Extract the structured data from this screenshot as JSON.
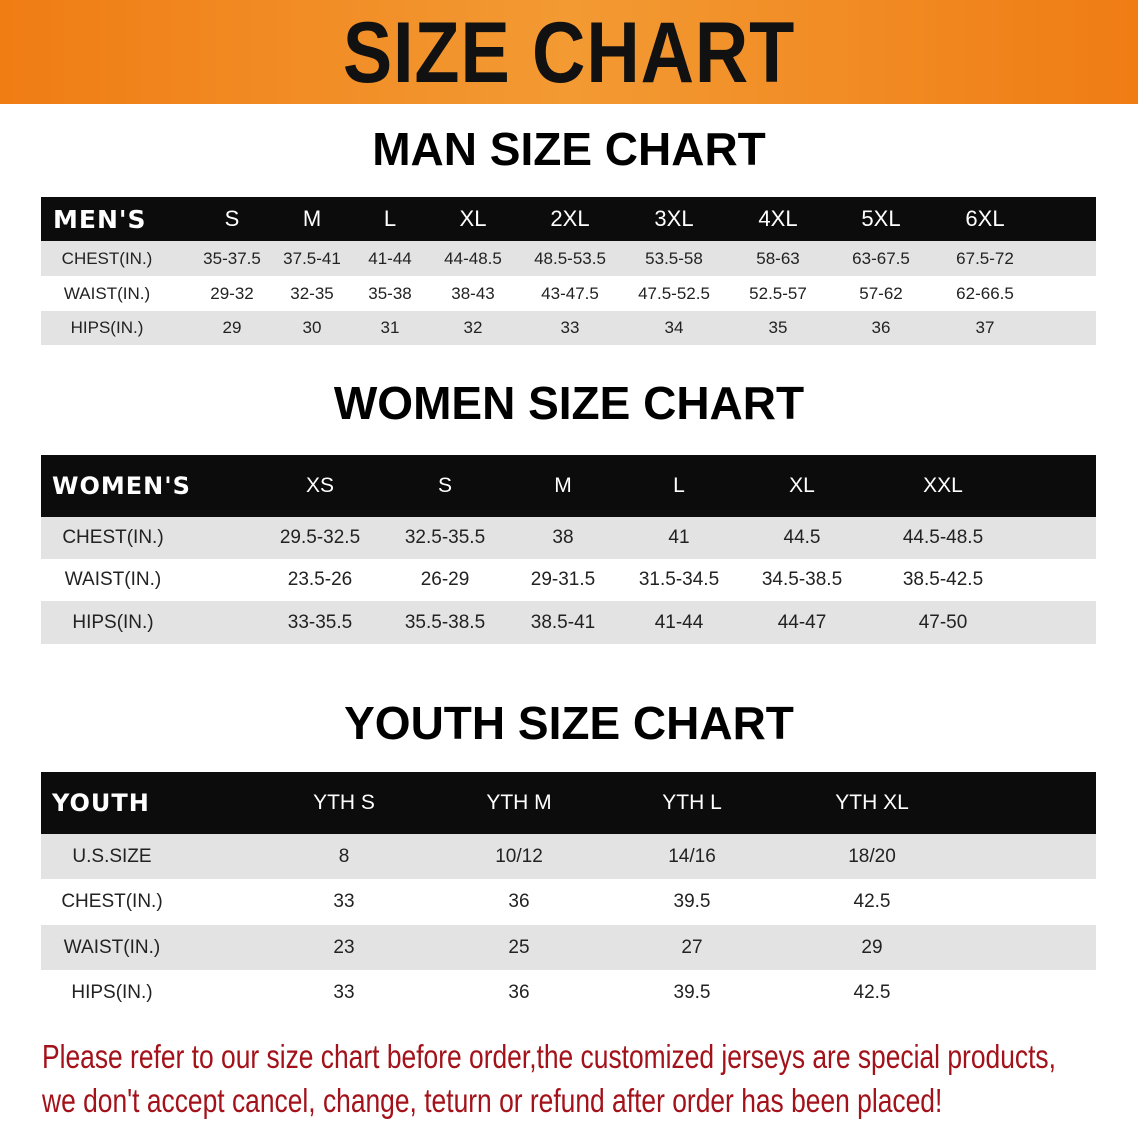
{
  "banner": {
    "title": "SIZE CHART",
    "color": "#f08a1d"
  },
  "men": {
    "title": "MAN SIZE CHART",
    "header": [
      "MEN'S",
      "S",
      "M",
      "L",
      "XL",
      "2XL",
      "3XL",
      "4XL",
      "5XL",
      "6XL"
    ],
    "rows": [
      [
        "CHEST(IN.)",
        "35-37.5",
        "37.5-41",
        "41-44",
        "44-48.5",
        "48.5-53.5",
        "53.5-58",
        "58-63",
        "63-67.5",
        "67.5-72"
      ],
      [
        "WAIST(IN.)",
        "29-32",
        "32-35",
        "35-38",
        "38-43",
        "43-47.5",
        "47.5-52.5",
        "52.5-57",
        "57-62",
        "62-66.5"
      ],
      [
        "HIPS(IN.)",
        "29",
        "30",
        "31",
        "32",
        "33",
        "34",
        "35",
        "36",
        "37"
      ]
    ]
  },
  "women": {
    "title": "WOMEN SIZE CHART",
    "header": [
      "WOMEN'S",
      "XS",
      "S",
      "M",
      "L",
      "XL",
      "XXL"
    ],
    "rows": [
      [
        "CHEST(IN.)",
        "29.5-32.5",
        "32.5-35.5",
        "38",
        "41",
        "44.5",
        "44.5-48.5"
      ],
      [
        "WAIST(IN.)",
        "23.5-26",
        "26-29",
        "29-31.5",
        "31.5-34.5",
        "34.5-38.5",
        "38.5-42.5"
      ],
      [
        "HIPS(IN.)",
        "33-35.5",
        "35.5-38.5",
        "38.5-41",
        "41-44",
        "44-47",
        "47-50"
      ]
    ]
  },
  "youth": {
    "title": "YOUTH SIZE CHART",
    "header": [
      "YOUTH",
      "YTH S",
      "YTH M",
      "YTH L",
      "YTH XL"
    ],
    "rows": [
      [
        "U.S.SIZE",
        "8",
        "10/12",
        "14/16",
        "18/20"
      ],
      [
        "CHEST(IN.)",
        "33",
        "36",
        "39.5",
        "42.5"
      ],
      [
        "WAIST(IN.)",
        "23",
        "25",
        "27",
        "29"
      ],
      [
        "HIPS(IN.)",
        "33",
        "36",
        "39.5",
        "42.5"
      ]
    ]
  },
  "notice": {
    "line1": "Please refer to our size chart before order,the customized jerseys are special products,",
    "line2": "we don't accept cancel, change, teturn or refund after order has been placed!",
    "color": "#a3121a"
  }
}
